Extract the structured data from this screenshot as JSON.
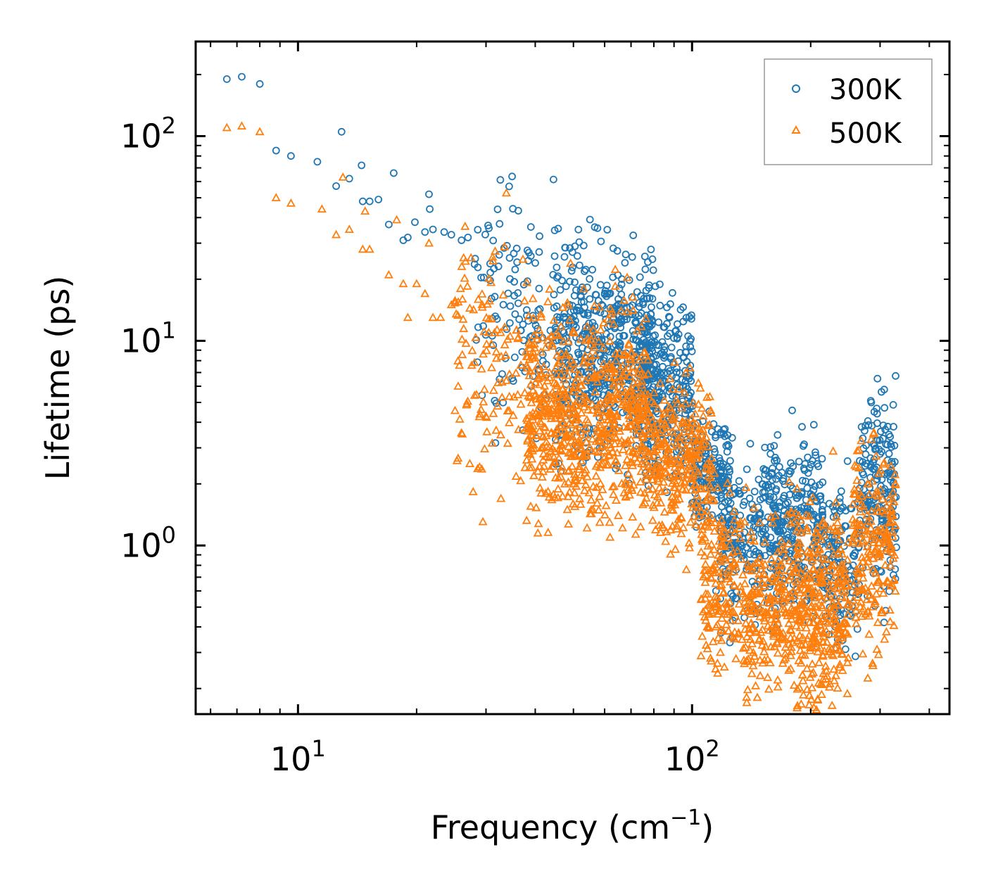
{
  "chart_data": {
    "type": "scatter",
    "title": "",
    "xlabel": "Frequency (cm",
    "xlabel_sup": "−1",
    "xlabel_close": ")",
    "ylabel": "Lifetime (ps)",
    "xscale": "log",
    "yscale": "log",
    "xlim": [
      5.5,
      450
    ],
    "ylim": [
      0.15,
      290
    ],
    "x_ticks": [
      {
        "value": 10,
        "base": "10",
        "exp": "1"
      },
      {
        "value": 100,
        "base": "10",
        "exp": "2"
      }
    ],
    "y_ticks": [
      {
        "value": 1,
        "base": "10",
        "exp": "0"
      },
      {
        "value": 10,
        "base": "10",
        "exp": "1"
      },
      {
        "value": 100,
        "base": "10",
        "exp": "2"
      }
    ],
    "legend_position": "top-right",
    "series": [
      {
        "name": "300K",
        "marker": "circle",
        "color": "#1f77b4",
        "points": [
          [
            6.6,
            190
          ],
          [
            7.2,
            195
          ],
          [
            8.0,
            180
          ],
          [
            8.8,
            85
          ],
          [
            9.6,
            80
          ],
          [
            11.2,
            75
          ],
          [
            12.5,
            57
          ],
          [
            12.9,
            105
          ],
          [
            13.5,
            62
          ],
          [
            14.5,
            72
          ],
          [
            14.6,
            48
          ],
          [
            15.2,
            48
          ],
          [
            16.0,
            49
          ],
          [
            17.0,
            37
          ],
          [
            17.5,
            66
          ],
          [
            18.5,
            31
          ],
          [
            19.0,
            32
          ],
          [
            19.8,
            38
          ],
          [
            21.0,
            34
          ],
          [
            21.5,
            52
          ],
          [
            21.6,
            44
          ],
          [
            22.0,
            35
          ],
          [
            23.5,
            34
          ],
          [
            24.5,
            33
          ],
          [
            26.0,
            31
          ],
          [
            27.0,
            32
          ],
          [
            39.0,
            36
          ],
          [
            40.0,
            24
          ],
          [
            55.0,
            16
          ],
          [
            65.0,
            16
          ],
          [
            63.0,
            12
          ],
          [
            66.0,
            15
          ],
          [
            75.0,
            9.5
          ],
          [
            85.0,
            9
          ],
          [
            95.0,
            6
          ],
          [
            100.0,
            5
          ],
          [
            110.0,
            3
          ],
          [
            120.0,
            2.5
          ],
          [
            115.0,
            0.6
          ],
          [
            118.0,
            0.55
          ],
          [
            140.0,
            1.7
          ],
          [
            165.0,
            1.2
          ],
          [
            178.0,
            2.3
          ],
          [
            180.0,
            1.9
          ],
          [
            190.0,
            1.8
          ],
          [
            200.0,
            1.4
          ],
          [
            230.0,
            1.1
          ],
          [
            250.0,
            0.5
          ],
          [
            285.0,
            5.0
          ],
          [
            290.0,
            4.5
          ],
          [
            300.0,
            2.8
          ],
          [
            320.0,
            1.5
          ]
        ],
        "bands": [
          {
            "x_range": [
              28,
              45
            ],
            "y_center": 14,
            "y_spread": 0.28,
            "count": 120
          },
          {
            "x_range": [
              45,
              80
            ],
            "y_center": 8.5,
            "y_spread": 0.25,
            "count": 600
          },
          {
            "x_range": [
              75,
              100
            ],
            "y_center": 6.0,
            "y_spread": 0.22,
            "count": 260
          },
          {
            "x_range": [
              100,
              125
            ],
            "y_center": 2.3,
            "y_spread": 0.14,
            "count": 150
          },
          {
            "x_range": [
              118,
              150
            ],
            "y_center": 1.0,
            "y_spread": 0.18,
            "count": 160
          },
          {
            "x_range": [
              150,
              215
            ],
            "y_center": 1.25,
            "y_spread": 0.2,
            "count": 320
          },
          {
            "x_range": [
              215,
              265
            ],
            "y_center": 0.8,
            "y_spread": 0.18,
            "count": 140
          },
          {
            "x_range": [
              265,
              330
            ],
            "y_center": 1.8,
            "y_spread": 0.25,
            "count": 200
          }
        ]
      },
      {
        "name": "500K",
        "marker": "triangle",
        "color": "#ff7f0e",
        "points": [
          [
            6.6,
            110
          ],
          [
            7.2,
            112
          ],
          [
            8.0,
            105
          ],
          [
            8.8,
            50
          ],
          [
            9.6,
            47
          ],
          [
            11.5,
            44
          ],
          [
            12.5,
            33
          ],
          [
            13.0,
            63
          ],
          [
            13.5,
            35
          ],
          [
            14.6,
            28
          ],
          [
            15.2,
            28
          ],
          [
            14.8,
            43
          ],
          [
            17.0,
            21
          ],
          [
            17.8,
            39
          ],
          [
            18.5,
            19
          ],
          [
            19.0,
            13
          ],
          [
            20.0,
            19
          ],
          [
            21.0,
            17
          ],
          [
            21.5,
            30
          ],
          [
            22.0,
            13
          ],
          [
            23.0,
            13
          ],
          [
            24.5,
            15
          ],
          [
            39.0,
            3.0
          ],
          [
            42.0,
            2.8
          ],
          [
            50.0,
            2.0
          ],
          [
            56.0,
            1.5
          ],
          [
            65.0,
            1.4
          ],
          [
            115.0,
            0.4
          ],
          [
            118.0,
            0.3
          ],
          [
            165.0,
            0.22
          ],
          [
            178.0,
            0.25
          ],
          [
            200.0,
            0.5
          ],
          [
            212.0,
            0.21
          ],
          [
            220.0,
            0.23
          ],
          [
            285.0,
            3.3
          ],
          [
            280.0,
            2.0
          ],
          [
            300.0,
            0.9
          ],
          [
            320.0,
            1.0
          ]
        ],
        "bands": [
          {
            "x_range": [
              25,
              40
            ],
            "y_center": 8.0,
            "y_spread": 0.3,
            "count": 140
          },
          {
            "x_range": [
              38,
              78
            ],
            "y_center": 4.3,
            "y_spread": 0.25,
            "count": 700
          },
          {
            "x_range": [
              78,
              112
            ],
            "y_center": 2.6,
            "y_spread": 0.2,
            "count": 280
          },
          {
            "x_range": [
              105,
              135
            ],
            "y_center": 0.7,
            "y_spread": 0.22,
            "count": 170
          },
          {
            "x_range": [
              135,
              175
            ],
            "y_center": 0.5,
            "y_spread": 0.2,
            "count": 200
          },
          {
            "x_range": [
              175,
              250
            ],
            "y_center": 0.5,
            "y_spread": 0.25,
            "count": 360
          },
          {
            "x_range": [
              255,
              330
            ],
            "y_center": 0.95,
            "y_spread": 0.25,
            "count": 200
          }
        ]
      }
    ]
  }
}
